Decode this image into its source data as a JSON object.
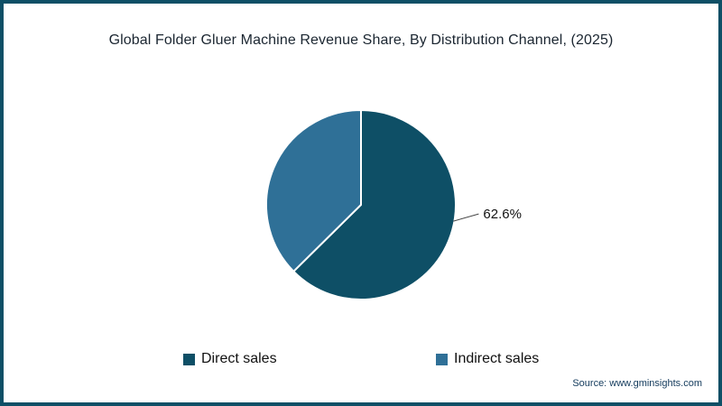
{
  "source": "Source: www.gminsights.com",
  "colors": {
    "frame_border": "#0e4f66",
    "direct_sales": "#0e4f66",
    "indirect_sales": "#2f7097",
    "leader_line": "#444444",
    "title_text": "#1b2631",
    "source_text": "#123a5c"
  },
  "chart_data": {
    "type": "pie",
    "title": "Global Folder Gluer Machine Revenue Share, By Distribution Channel, (2025)",
    "slices": [
      {
        "label": "Direct sales",
        "value": 62.6,
        "color": "#0e4f66",
        "data_label": "62.6%"
      },
      {
        "label": "Indirect sales",
        "value": 37.4,
        "color": "#2f7097",
        "data_label": ""
      }
    ],
    "start_angle_deg": 0,
    "direction": "clockwise",
    "legend_position": "bottom",
    "source": "Source: www.gminsights.com"
  }
}
